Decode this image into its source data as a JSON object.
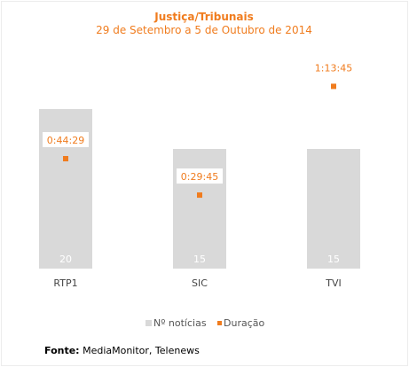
{
  "chart_data": {
    "type": "bar",
    "title": "Justiça/Tribunais",
    "subtitle": "29 de Setembro a 5 de Outubro de 2014",
    "categories": [
      "RTP1",
      "SIC",
      "TVI"
    ],
    "series": [
      {
        "name": "Nº notícias",
        "type": "bar",
        "values": [
          20,
          15,
          15
        ]
      },
      {
        "name": "Duração",
        "type": "scatter",
        "values": [
          "0:44:29",
          "0:29:45",
          "1:13:45"
        ]
      }
    ],
    "legend_position": "bottom",
    "grid": false,
    "colors": {
      "bars": "#d9d9d9",
      "duration": "#f07c1e",
      "title": "#f07c1e"
    }
  },
  "source": {
    "label": "Fonte:",
    "text": "MediaMonitor, Telenews"
  }
}
